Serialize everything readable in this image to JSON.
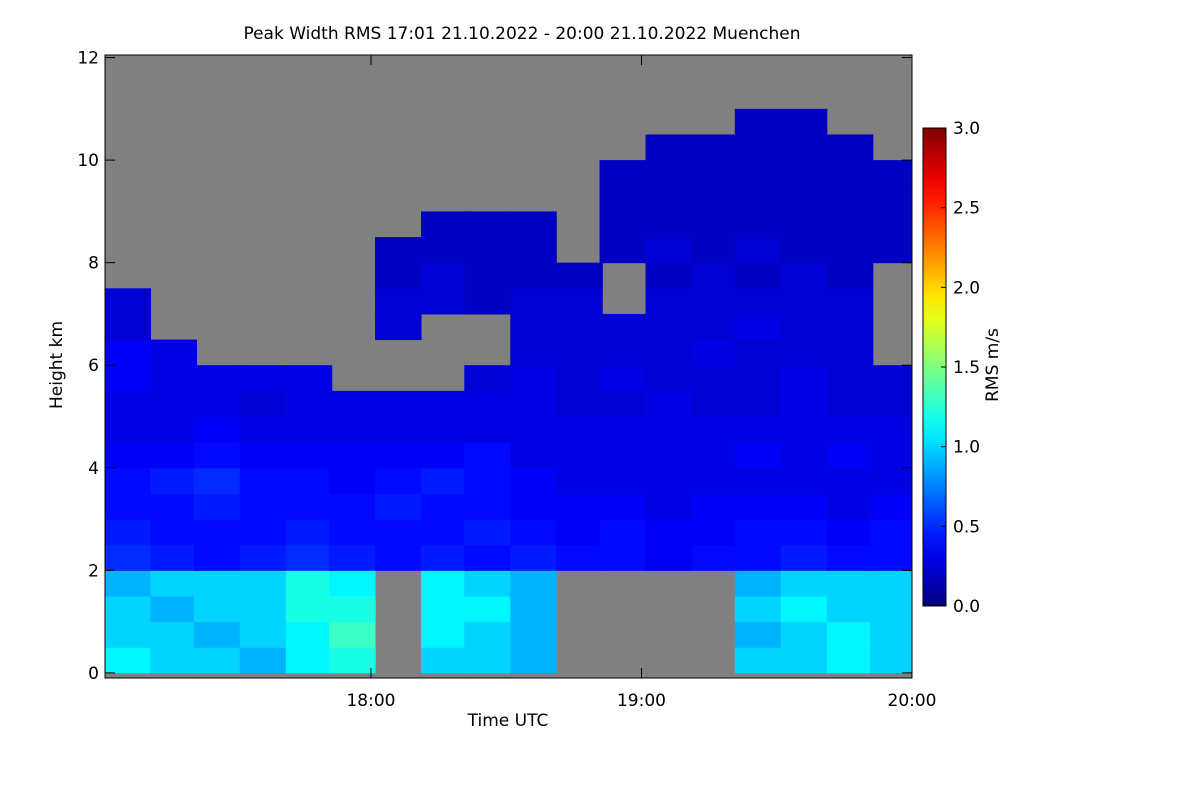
{
  "chart_data": {
    "type": "heatmap",
    "title": "Peak Width RMS   17:01 21.10.2022 - 20:00 21.10.2022 Muenchen",
    "xlabel": "Time UTC",
    "ylabel": "Height km",
    "colorbar_label": "RMS m/s",
    "xlim": [
      17.0167,
      20.0
    ],
    "xticks": [
      {
        "value": 18,
        "label": "18:00"
      },
      {
        "value": 19,
        "label": "19:00"
      },
      {
        "value": 20,
        "label": "20:00"
      }
    ],
    "ylim": [
      -0.1,
      12.05
    ],
    "yticks": [
      0,
      2,
      4,
      6,
      8,
      10,
      12
    ],
    "clim": [
      0,
      3
    ],
    "cticks": [
      {
        "value": 0,
        "label": "0.0"
      },
      {
        "value": 0.5,
        "label": "0.5"
      },
      {
        "value": 1,
        "label": "1.0"
      },
      {
        "value": 1.5,
        "label": "1.5"
      },
      {
        "value": 2,
        "label": "2.0"
      },
      {
        "value": 2.5,
        "label": "2.5"
      },
      {
        "value": 3,
        "label": "3.0"
      }
    ],
    "colormap": "jet",
    "missing_color": "#808080",
    "x": [
      17.1,
      17.27,
      17.43,
      17.6,
      17.77,
      17.93,
      18.1,
      18.27,
      18.43,
      18.6,
      18.77,
      18.93,
      19.1,
      19.27,
      19.43,
      19.6,
      19.77,
      19.93
    ],
    "y": [
      0.25,
      0.75,
      1.25,
      1.75,
      2.25,
      2.75,
      3.25,
      3.75,
      4.25,
      4.75,
      5.25,
      5.75,
      6.25,
      6.75,
      7.25,
      7.75,
      8.25,
      8.75,
      9.25,
      9.75,
      10.25,
      10.75,
      11.25,
      11.75
    ],
    "z": [
      [
        1.1,
        1.0,
        1.0,
        0.9,
        1.1,
        1.2,
        null,
        1.0,
        1.0,
        0.9,
        null,
        null,
        null,
        null,
        1.0,
        1.0,
        1.1,
        1.0
      ],
      [
        1.0,
        1.0,
        0.9,
        1.0,
        1.1,
        1.3,
        null,
        1.1,
        1.0,
        0.9,
        null,
        null,
        null,
        null,
        0.9,
        1.0,
        1.1,
        1.0
      ],
      [
        1.0,
        0.9,
        1.0,
        1.0,
        1.2,
        1.2,
        null,
        1.1,
        1.1,
        0.9,
        null,
        null,
        null,
        null,
        1.0,
        1.1,
        1.0,
        1.0
      ],
      [
        0.9,
        1.0,
        1.0,
        1.0,
        1.2,
        1.1,
        null,
        1.1,
        1.0,
        0.9,
        null,
        null,
        null,
        null,
        0.9,
        1.0,
        1.0,
        1.0
      ],
      [
        0.5,
        0.45,
        0.4,
        0.45,
        0.5,
        0.45,
        0.4,
        0.45,
        0.4,
        0.45,
        0.4,
        0.4,
        0.35,
        0.4,
        0.4,
        0.45,
        0.4,
        0.4
      ],
      [
        0.45,
        0.4,
        0.4,
        0.4,
        0.45,
        0.4,
        0.4,
        0.4,
        0.45,
        0.4,
        0.35,
        0.4,
        0.35,
        0.35,
        0.4,
        0.4,
        0.35,
        0.4
      ],
      [
        0.4,
        0.4,
        0.45,
        0.4,
        0.4,
        0.4,
        0.45,
        0.4,
        0.4,
        0.35,
        0.35,
        0.35,
        0.3,
        0.35,
        0.35,
        0.35,
        0.3,
        0.35
      ],
      [
        0.4,
        0.45,
        0.5,
        0.4,
        0.4,
        0.35,
        0.4,
        0.45,
        0.4,
        0.35,
        0.3,
        0.3,
        0.3,
        0.3,
        0.3,
        0.3,
        0.3,
        0.3
      ],
      [
        0.35,
        0.35,
        0.4,
        0.35,
        0.35,
        0.35,
        0.35,
        0.35,
        0.4,
        0.3,
        0.3,
        0.3,
        0.3,
        0.3,
        0.35,
        0.3,
        0.35,
        0.3
      ],
      [
        0.3,
        0.3,
        0.35,
        0.3,
        0.3,
        0.3,
        0.3,
        0.3,
        0.3,
        0.3,
        0.3,
        0.3,
        0.3,
        0.3,
        0.3,
        0.3,
        0.3,
        0.3
      ],
      [
        0.3,
        0.3,
        0.3,
        0.25,
        0.3,
        0.3,
        0.3,
        0.3,
        0.3,
        0.3,
        0.25,
        0.25,
        0.3,
        0.25,
        0.25,
        0.3,
        0.25,
        0.25
      ],
      [
        0.35,
        0.3,
        0.3,
        0.3,
        0.3,
        null,
        null,
        null,
        0.25,
        0.3,
        0.25,
        0.3,
        0.25,
        0.25,
        0.25,
        0.3,
        0.25,
        0.25
      ],
      [
        0.35,
        0.3,
        null,
        null,
        null,
        null,
        null,
        null,
        null,
        0.25,
        0.25,
        0.25,
        0.25,
        0.3,
        0.25,
        0.25,
        0.25,
        null
      ],
      [
        0.25,
        null,
        null,
        null,
        null,
        null,
        0.25,
        null,
        null,
        0.25,
        0.25,
        0.25,
        0.25,
        0.25,
        0.3,
        0.25,
        0.25,
        null
      ],
      [
        0.25,
        null,
        null,
        null,
        null,
        null,
        0.25,
        0.25,
        0.2,
        0.25,
        0.25,
        null,
        0.25,
        0.25,
        0.25,
        0.25,
        0.25,
        null
      ],
      [
        null,
        null,
        null,
        null,
        null,
        null,
        0.2,
        0.25,
        0.2,
        0.2,
        0.2,
        null,
        0.2,
        0.25,
        0.2,
        0.25,
        0.2,
        null
      ],
      [
        null,
        null,
        null,
        null,
        null,
        null,
        0.2,
        0.2,
        0.2,
        0.2,
        null,
        0.2,
        0.25,
        0.2,
        0.25,
        0.2,
        0.2,
        0.2
      ],
      [
        null,
        null,
        null,
        null,
        null,
        null,
        null,
        0.2,
        0.2,
        0.2,
        null,
        0.2,
        0.2,
        0.2,
        0.2,
        0.2,
        0.2,
        0.2
      ],
      [
        null,
        null,
        null,
        null,
        null,
        null,
        null,
        null,
        null,
        null,
        null,
        0.2,
        0.2,
        0.2,
        0.2,
        0.2,
        0.2,
        0.2
      ],
      [
        null,
        null,
        null,
        null,
        null,
        null,
        null,
        null,
        null,
        null,
        null,
        0.2,
        0.2,
        0.2,
        0.2,
        0.2,
        0.2,
        0.2
      ],
      [
        null,
        null,
        null,
        null,
        null,
        null,
        null,
        null,
        null,
        null,
        null,
        null,
        0.2,
        0.2,
        0.2,
        0.2,
        0.2,
        null
      ],
      [
        null,
        null,
        null,
        null,
        null,
        null,
        null,
        null,
        null,
        null,
        null,
        null,
        null,
        null,
        0.2,
        0.2,
        null,
        null
      ],
      [
        null,
        null,
        null,
        null,
        null,
        null,
        null,
        null,
        null,
        null,
        null,
        null,
        null,
        null,
        null,
        null,
        null,
        null
      ],
      [
        null,
        null,
        null,
        null,
        null,
        null,
        null,
        null,
        null,
        null,
        null,
        null,
        null,
        null,
        null,
        null,
        null,
        null
      ]
    ]
  }
}
